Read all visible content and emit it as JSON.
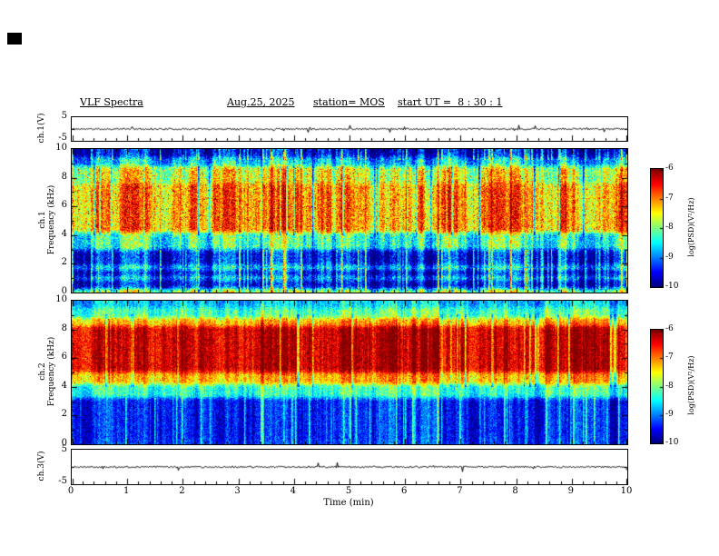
{
  "header": {
    "title": "VLF Spectra",
    "date": "Aug.25, 2025",
    "station": "station= MOS",
    "start_ut": "start UT =  8 : 30 : 1"
  },
  "panels": {
    "ch1v": {
      "name": "ch.1(V)",
      "ymax": "5",
      "ymin": "-5"
    },
    "ch1": {
      "name": "ch.1",
      "ylabel": "Frequency (kHz)"
    },
    "ch2": {
      "name": "ch.2",
      "ylabel": "Frequency (kHz)"
    },
    "ch3v": {
      "name": "ch.3(V)",
      "ymax": "5",
      "ymin": "-5"
    }
  },
  "xaxis": {
    "label": "Time (min)",
    "min": 0,
    "max": 10,
    "tick_labels": [
      "0",
      "1",
      "2",
      "3",
      "4",
      "5",
      "6",
      "7",
      "8",
      "9",
      "10"
    ]
  },
  "yaxis_freq": {
    "min": 0,
    "max": 10,
    "tick_labels": [
      "0",
      "2",
      "4",
      "6",
      "8",
      "10"
    ]
  },
  "colorbar": {
    "label": "log(PSD)(V²/Hz)",
    "tick_labels": [
      "-6",
      "-7",
      "-8",
      "-9",
      "-10"
    ],
    "vmin": -10,
    "vmax": -6,
    "colormap": "jet"
  },
  "chart_data": {
    "type": "heatmap",
    "title": "VLF Spectra",
    "date": "Aug.25, 2025",
    "station": "MOS",
    "start_ut": "8 : 30 : 1",
    "x": {
      "label": "Time (min)",
      "range": [
        0,
        10
      ]
    },
    "colorbar": {
      "label": "log(PSD)(V²/Hz)",
      "range": [
        -10,
        -6
      ],
      "colormap": "jet"
    },
    "panels": [
      {
        "id": "ch1v",
        "type": "line",
        "label": "ch.1(V)",
        "y_range": [
          -5,
          5
        ],
        "baseline": 0,
        "noise_amplitude_v": 0.35,
        "description": "near-zero voltage trace with dense small noise spikes"
      },
      {
        "id": "ch1",
        "type": "heatmap",
        "label": "ch.1 Frequency (kHz)",
        "y_range": [
          0,
          10
        ],
        "z_range": [
          -10,
          -6
        ],
        "bands": [
          {
            "f": [
              0,
              0.25
            ],
            "psd": -7.7
          },
          {
            "f": [
              0.25,
              0.9
            ],
            "psd": -9.6
          },
          {
            "f": [
              0.9,
              1.15
            ],
            "psd": -8.6
          },
          {
            "f": [
              1.15,
              1.6
            ],
            "psd": -9.6
          },
          {
            "f": [
              1.6,
              1.9
            ],
            "psd": -8.5
          },
          {
            "f": [
              1.9,
              3.0
            ],
            "psd": -9.5
          },
          {
            "f": [
              3.0,
              4.2
            ],
            "psd": -8.3
          },
          {
            "f": [
              4.2,
              7.6
            ],
            "psd": -7.1
          },
          {
            "f": [
              7.6,
              8.8
            ],
            "psd": -7.6
          },
          {
            "f": [
              8.8,
              9.4
            ],
            "psd": -8.7
          },
          {
            "f": [
              9.4,
              10
            ],
            "psd": -9.6
          }
        ],
        "noise_amplitude": 0.55,
        "streak_amplitude": 1.3,
        "streak_probability": 0.12,
        "dark_gap_probability": 0.05,
        "speckle_probability": 0.03,
        "description": "broadband green/yellow emission 4-8 kHz with red flecks, dark below 3 kHz with narrow blue vertical streaks, thin cyan lines near 1 and 1.7 kHz, dark band above 9.4 kHz"
      },
      {
        "id": "ch2",
        "type": "heatmap",
        "label": "ch.2 Frequency (kHz)",
        "y_range": [
          0,
          10
        ],
        "z_range": [
          -10,
          -6
        ],
        "bands": [
          {
            "f": [
              0,
              0.3
            ],
            "psd": -9.3
          },
          {
            "f": [
              0.3,
              3.2
            ],
            "psd": -9.4
          },
          {
            "f": [
              3.2,
              4.2
            ],
            "psd": -8.3
          },
          {
            "f": [
              4.2,
              5.0
            ],
            "psd": -7.2
          },
          {
            "f": [
              5.0,
              8.2
            ],
            "psd": -6.3
          },
          {
            "f": [
              8.2,
              8.8
            ],
            "psd": -7.2
          },
          {
            "f": [
              8.8,
              9.5
            ],
            "psd": -8.2
          },
          {
            "f": [
              9.5,
              10
            ],
            "psd": -8.7
          }
        ],
        "noise_amplitude": 0.4,
        "streak_amplitude": 0.9,
        "streak_probability": 0.08,
        "dark_gap_probability": 0.04,
        "speckle_probability": 0.01,
        "description": "intense red band 5-8 kHz bounded by yellow/green edges, cyan/blue 8.8-10 kHz, dark below 3 kHz with blue vertical streaks"
      },
      {
        "id": "ch3v",
        "type": "line",
        "label": "ch.3(V)",
        "y_range": [
          -5,
          5
        ],
        "baseline": 0,
        "noise_amplitude_v": 0.25,
        "description": "near-zero voltage trace with small noise"
      }
    ]
  }
}
